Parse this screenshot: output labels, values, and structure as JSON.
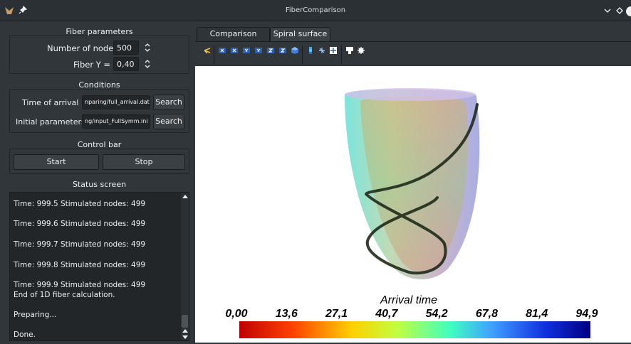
{
  "window": {
    "title": "FiberComparison"
  },
  "fiber_parameters": {
    "title": "Fiber parameters",
    "nodes_label": "Number of nodes:",
    "nodes_value": "500",
    "fiber_y_label": "Fiber Y =",
    "fiber_y_value": "0,40"
  },
  "conditions": {
    "title": "Conditions",
    "arrival_label": "Time of arrival",
    "arrival_value": "nparing/full_arrival.dat",
    "initial_label": "Initial parameters",
    "initial_value": "ng/input_FullSymm.ini",
    "search_label": "Search"
  },
  "control_bar": {
    "title": "Control bar",
    "start_label": "Start",
    "stop_label": "Stop"
  },
  "status": {
    "title": "Status screen",
    "lines": [
      "Time: 999.5  Stimulated nodes: 499",
      "Time: 999.6  Stimulated nodes: 499",
      "Time: 999.7  Stimulated nodes: 499",
      "Time: 999.8  Stimulated nodes: 499",
      "Time: 999.9  Stimulated nodes: 499",
      "End of 1D fiber calculation.",
      "Preparing...",
      "Done."
    ]
  },
  "tabs": [
    "Comparison graph",
    "Spiral surface"
  ],
  "colorbar": {
    "title": "Arrival time",
    "ticks": [
      "0,00",
      "13,6",
      "27,1",
      "40,7",
      "54,2",
      "67,8",
      "81,4",
      "94,9"
    ]
  },
  "icons": {
    "toolbar": [
      "axes-icon",
      "view-x-icon",
      "view-neg-x-icon",
      "view-y-icon",
      "view-neg-y-icon",
      "view-z-icon",
      "view-neg-z-icon",
      "view-iso-icon",
      "colorbar-icon",
      "rotate-icon",
      "fit-icon",
      "save-icon",
      "settings-icon"
    ]
  },
  "colors": {
    "window_bg": "#31363b",
    "field_bg": "#232629",
    "accent": "#3daee9"
  }
}
